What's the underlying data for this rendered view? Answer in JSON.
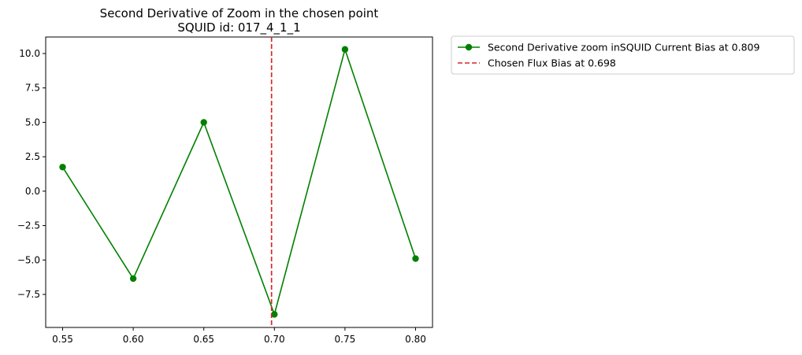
{
  "chart_data": {
    "type": "line",
    "title": "Second Derivative of Zoom in the chosen point",
    "subtitle": "SQUID id: 017_4_1_1",
    "xlabel": "",
    "ylabel": "",
    "xlim": [
      0.538,
      0.812
    ],
    "ylim": [
      -9.9,
      11.2
    ],
    "x_ticks": [
      "0.55",
      "0.60",
      "0.65",
      "0.70",
      "0.75",
      "0.80"
    ],
    "x_tick_values": [
      0.55,
      0.6,
      0.65,
      0.7,
      0.75,
      0.8
    ],
    "y_ticks": [
      "10.0",
      "7.5",
      "5.0",
      "2.5",
      "0.0",
      "−2.5",
      "−5.0",
      "−7.5"
    ],
    "y_tick_values": [
      10.0,
      7.5,
      5.0,
      2.5,
      0.0,
      -2.5,
      -5.0,
      -7.5
    ],
    "grid": false,
    "legend_position": "outside-top-right",
    "series": [
      {
        "name": "Second Derivative zoom inSQUID Current Bias at 0.809",
        "color": "#008000",
        "marker": "circle",
        "x": [
          0.55,
          0.6,
          0.65,
          0.7,
          0.75,
          0.8
        ],
        "y": [
          1.75,
          -6.35,
          5.0,
          -8.95,
          10.3,
          -4.9
        ]
      }
    ],
    "vlines": [
      {
        "name": "Chosen Flux Bias at 0.698",
        "x": 0.698,
        "color": "#d62728",
        "style": "dashed"
      }
    ]
  }
}
